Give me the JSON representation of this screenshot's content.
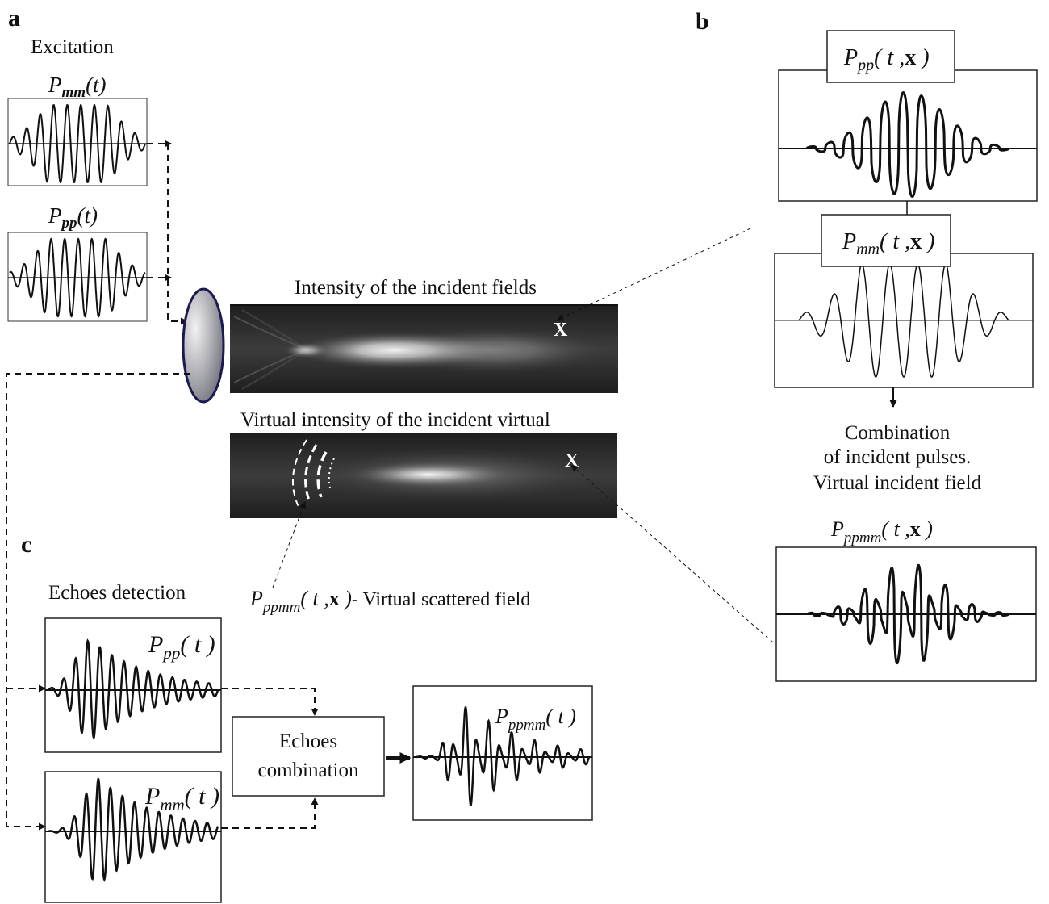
{
  "panels": {
    "a": {
      "letter": "a",
      "title": "Excitation",
      "signal1": {
        "sym": "P",
        "sub": "mm",
        "arg": "(t)"
      },
      "signal2": {
        "sym": "P",
        "sub": "pp",
        "arg": "(t)"
      }
    },
    "b": {
      "letter": "b",
      "box1": {
        "sym": "P",
        "sub": "pp",
        "arg1": "( t ,",
        "bold": "x",
        "arg2": " )"
      },
      "box2": {
        "sym": "P",
        "sub": "mm",
        "arg1": "( t ,",
        "bold": "x",
        "arg2": " )"
      },
      "combination_lines": [
        "Combination",
        "of incident pulses.",
        "Virtual incident field"
      ],
      "result": {
        "sym": "P",
        "sub": "ppmm",
        "arg1": "( t ,",
        "bold": "x",
        "arg2": " )"
      }
    },
    "center": {
      "intensity_title": "Intensity of the incident fields",
      "virtual_title": "Virtual intensity of the incident virtual",
      "point_mark": "X",
      "scatter_label": {
        "sym": "P",
        "sub": "ppmm",
        "arg1": "( t ,",
        "bold": "x",
        "arg2": " )",
        "suffix": "- Virtual scattered field"
      }
    },
    "c": {
      "letter": "c",
      "title": "Echoes detection",
      "echo1": {
        "sym": "P",
        "sub": "pp",
        "arg": "( t )"
      },
      "echo2": {
        "sym": "P",
        "sub": "mm",
        "arg": "( t )"
      },
      "combination_lines": [
        "Echoes",
        "combination"
      ],
      "result": {
        "sym": "P",
        "sub": "ppmm",
        "arg": "( t )"
      }
    }
  }
}
